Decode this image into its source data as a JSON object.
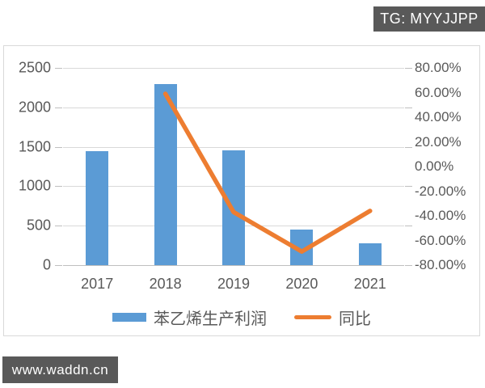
{
  "page": {
    "top_badge": "TG: MYYJJPP",
    "watermark": "www.waddn.cn",
    "badge_color": "#595959"
  },
  "chart_data": {
    "type": "bar",
    "subtype": "bar-and-line-dual-axis",
    "title": "",
    "categories": [
      "2017",
      "2018",
      "2019",
      "2020",
      "2021"
    ],
    "series": [
      {
        "name": "苯乙烯生产利润",
        "type": "bar",
        "axis": "left",
        "color": "#5b9bd5",
        "values": [
          1440,
          2290,
          1460,
          450,
          280
        ]
      },
      {
        "name": "同比",
        "type": "line",
        "axis": "right",
        "color": "#ed7d31",
        "unit": "%",
        "values": [
          null,
          59,
          -37,
          -69,
          -36
        ]
      }
    ],
    "left_axis": {
      "min": 0,
      "max": 2500,
      "step": 500,
      "ticks": [
        "2500",
        "2000",
        "1500",
        "1000",
        "500",
        "0"
      ]
    },
    "right_axis": {
      "min": -80,
      "max": 80,
      "step": 20,
      "ticks": [
        "80.00%",
        "60.00%",
        "40.00%",
        "20.00%",
        "0.00%",
        "-20.00%",
        "-40.00%",
        "-60.00%",
        "-80.00%"
      ]
    },
    "legend": [
      {
        "label": "苯乙烯生产利润",
        "color": "#5b9bd5",
        "shape": "rect"
      },
      {
        "label": "同比",
        "color": "#ed7d31",
        "shape": "line"
      }
    ],
    "grid": true,
    "legend_position": "bottom",
    "gridline_color": "#d9d9d9"
  }
}
